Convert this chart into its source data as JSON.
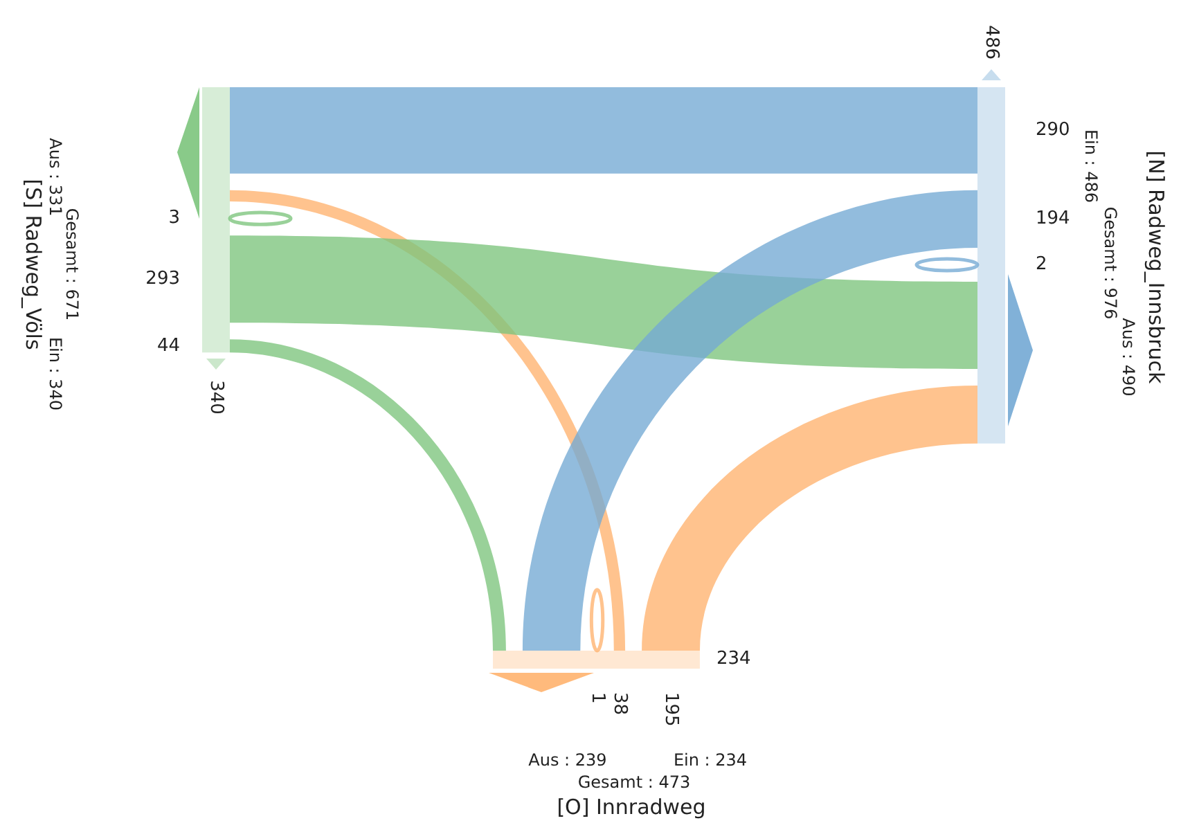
{
  "chart_data": {
    "type": "other",
    "categories": [
      "[S] Radweg_Völs",
      "[N] Radweg_Innsbruck",
      "[O] Innradweg"
    ],
    "series": [
      {
        "colors": [
          "#7cc47c",
          "#73a9d4",
          "#ffb26e"
        ],
        "values": [
          3,
          290,
          38
        ]
      },
      {
        "colors": [
          "#7cc47c",
          "#73a9d4",
          "#ffb26e"
        ],
        "values": [
          293,
          2,
          195
        ]
      },
      {
        "colors": [
          "#7cc47c",
          "#73a9d4",
          "#ffb26e"
        ],
        "values": [
          44,
          194,
          1
        ]
      }
    ],
    "data_labels": true,
    "totals": [
      "340",
      "486",
      "234"
    ],
    "annotations": [
      "Aus : 331",
      "Ein : 340",
      "Gesamt : 671",
      "Aus : 490",
      "Ein : 486",
      "Gesamt : 976",
      "Aus : 239",
      "Ein : 234",
      "Gesamt : 473"
    ]
  }
}
